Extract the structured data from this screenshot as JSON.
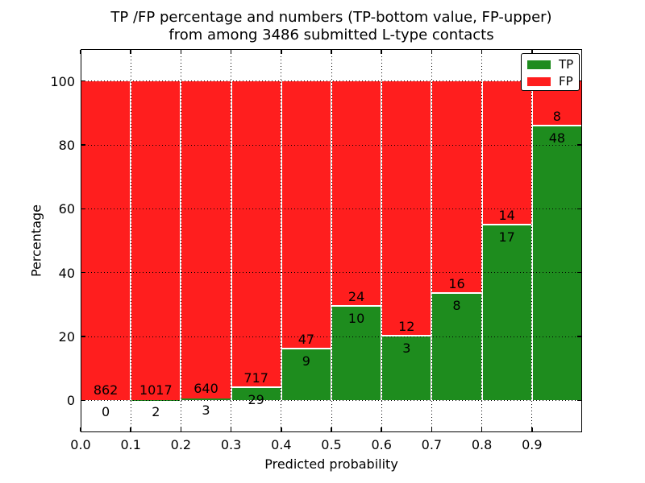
{
  "chart_data": {
    "type": "bar",
    "stacked": true,
    "title_lines": [
      "TP /FP percentage and numbers (TP-bottom value, FP-upper)",
      "from among 3486 submitted L-type contacts"
    ],
    "xlabel": "Predicted probability",
    "ylabel": "Percentage",
    "xlim": [
      0.0,
      1.0
    ],
    "ylim": [
      -10,
      110
    ],
    "x_tick_labels": [
      "0.0",
      "0.1",
      "0.2",
      "0.3",
      "0.4",
      "0.5",
      "0.6",
      "0.7",
      "0.8",
      "0.9"
    ],
    "y_tick_values": [
      0,
      20,
      40,
      60,
      80,
      100
    ],
    "grid": "dotted",
    "total_submitted": 3486,
    "colors": {
      "tp": "#1e8c1e",
      "fp": "#ff1e1e",
      "bar_edge": "#ffffff"
    },
    "legend": {
      "position": "upper right",
      "entries": [
        {
          "label": "TP",
          "color": "#1e8c1e"
        },
        {
          "label": "FP",
          "color": "#ff1e1e"
        }
      ]
    },
    "bins": [
      {
        "range": [
          0.0,
          0.1
        ],
        "tp": 0,
        "fp": 862,
        "tp_pct": 0.0
      },
      {
        "range": [
          0.1,
          0.2
        ],
        "tp": 2,
        "fp": 1017,
        "tp_pct": 0.2
      },
      {
        "range": [
          0.2,
          0.3
        ],
        "tp": 3,
        "fp": 640,
        "tp_pct": 0.47
      },
      {
        "range": [
          0.3,
          0.4
        ],
        "tp": 29,
        "fp": 717,
        "tp_pct": 3.89
      },
      {
        "range": [
          0.4,
          0.5
        ],
        "tp": 9,
        "fp": 47,
        "tp_pct": 16.07
      },
      {
        "range": [
          0.5,
          0.6
        ],
        "tp": 10,
        "fp": 24,
        "tp_pct": 29.41
      },
      {
        "range": [
          0.6,
          0.7
        ],
        "tp": 3,
        "fp": 12,
        "tp_pct": 20.0
      },
      {
        "range": [
          0.7,
          0.8
        ],
        "tp": 8,
        "fp": 16,
        "tp_pct": 33.33
      },
      {
        "range": [
          0.8,
          0.9
        ],
        "tp": 17,
        "fp": 14,
        "tp_pct": 54.84
      },
      {
        "range": [
          0.9,
          1.0
        ],
        "tp": 48,
        "fp": 8,
        "tp_pct": 85.71
      }
    ]
  }
}
